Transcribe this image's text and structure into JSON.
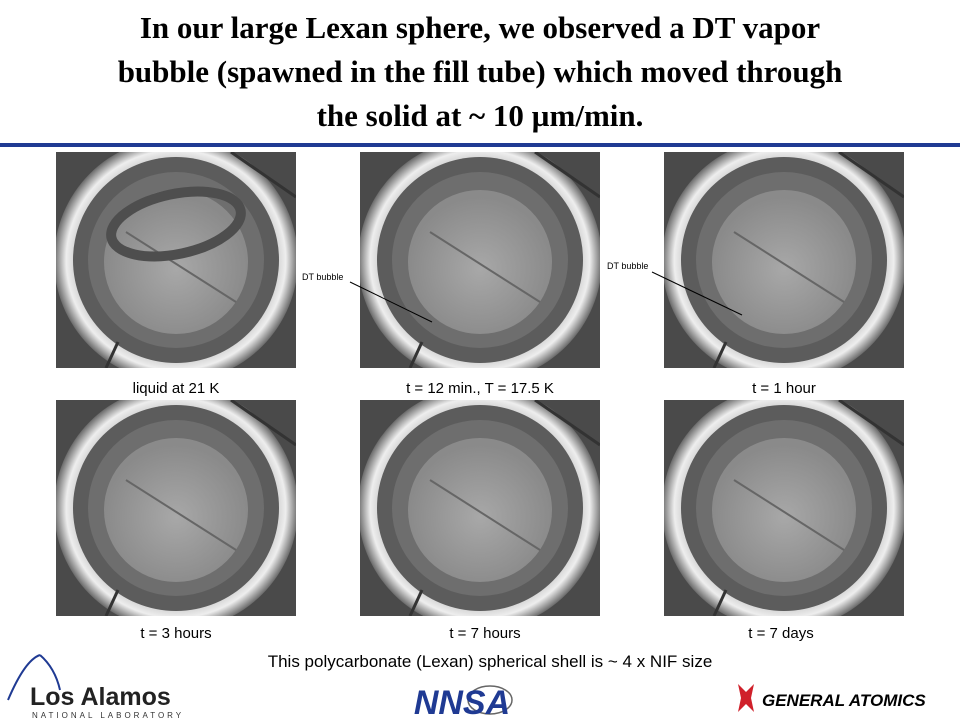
{
  "header": {
    "title_lines": [
      "In our large Lexan sphere, we observed a DT vapor",
      "bubble (spawned in the fill tube) which moved through",
      "the solid at ~ 10 µm/min."
    ]
  },
  "photos": [
    {
      "caption": "liquid at 21 K"
    },
    {
      "caption": "t = 12 min., T = 17.5 K"
    },
    {
      "caption": "t = 1 hour"
    },
    {
      "caption": "t = 3 hours"
    },
    {
      "caption": "t = 7 hours"
    },
    {
      "caption": "t = 7 days"
    }
  ],
  "annotations": [
    {
      "label": "DT bubble"
    },
    {
      "label": "DT bubble"
    }
  ],
  "footer": {
    "caption": "This polycarbonate (Lexan) spherical shell is ~ 4 x NIF size",
    "logos": {
      "los_alamos": "Los Alamos",
      "los_alamos_sub": "NATIONAL LABORATORY",
      "nnsa": "NNSA",
      "general_atomics": "GENERAL ATOMICS"
    }
  }
}
